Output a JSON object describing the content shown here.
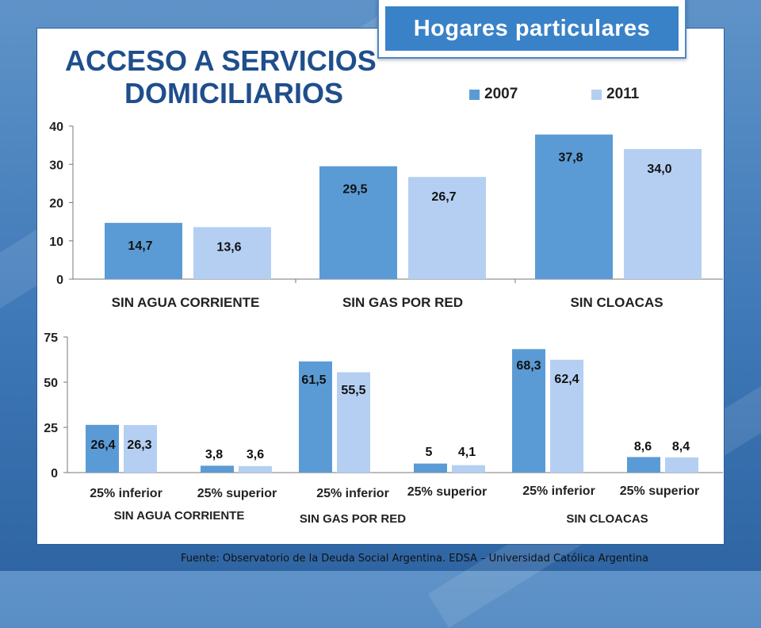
{
  "badge": "Hogares particulares",
  "title_line1": "ACCESO A SERVICIOS",
  "title_line2": "DOMICILIARIOS",
  "source": "Fuente:  Observatorio de  la Deuda Social Argentina. EDSA  – Universidad Católica Argentina",
  "colors": {
    "s2007": "#5b9bd5",
    "s2011": "#b4cff2",
    "title": "#1f4e8c",
    "badge": "#3a82c8"
  },
  "chart_data": [
    {
      "type": "bar",
      "categories": [
        "SIN AGUA CORRIENTE",
        "SIN GAS POR RED",
        "SIN CLOACAS"
      ],
      "series": [
        {
          "name": "2007",
          "values": [
            14.7,
            29.5,
            37.8
          ],
          "labels": [
            "14,7",
            "29,5",
            "37,8"
          ]
        },
        {
          "name": "2011",
          "values": [
            13.6,
            26.7,
            34.0
          ],
          "labels": [
            "13,6",
            "26,7",
            "34,0"
          ]
        }
      ],
      "ylim": [
        0,
        40
      ],
      "yticks": [
        "0",
        "10",
        "20",
        "30",
        "40"
      ],
      "grid": false,
      "legend": "top-right"
    },
    {
      "type": "bar",
      "categories": [
        "25% inferior",
        "25% superior",
        "25% inferior",
        "25% superior",
        "25% inferior",
        "25% superior"
      ],
      "groups": [
        "SIN AGUA CORRIENTE",
        "SIN GAS POR RED",
        "SIN CLOACAS"
      ],
      "series": [
        {
          "values": [
            26.4,
            3.8,
            61.5,
            5,
            68.3,
            8.6
          ],
          "labels": [
            "26,4",
            "3,8",
            "61,5",
            "5",
            "68,3",
            "8,6"
          ]
        },
        {
          "values": [
            26.3,
            3.6,
            55.5,
            4.1,
            62.4,
            8.4
          ],
          "labels": [
            "26,3",
            "3,6",
            "55,5",
            "4,1",
            "62,4",
            "8,4"
          ]
        }
      ],
      "ylim": [
        0,
        75
      ],
      "yticks": [
        "0",
        "25",
        "50",
        "75"
      ],
      "grid": false
    }
  ]
}
